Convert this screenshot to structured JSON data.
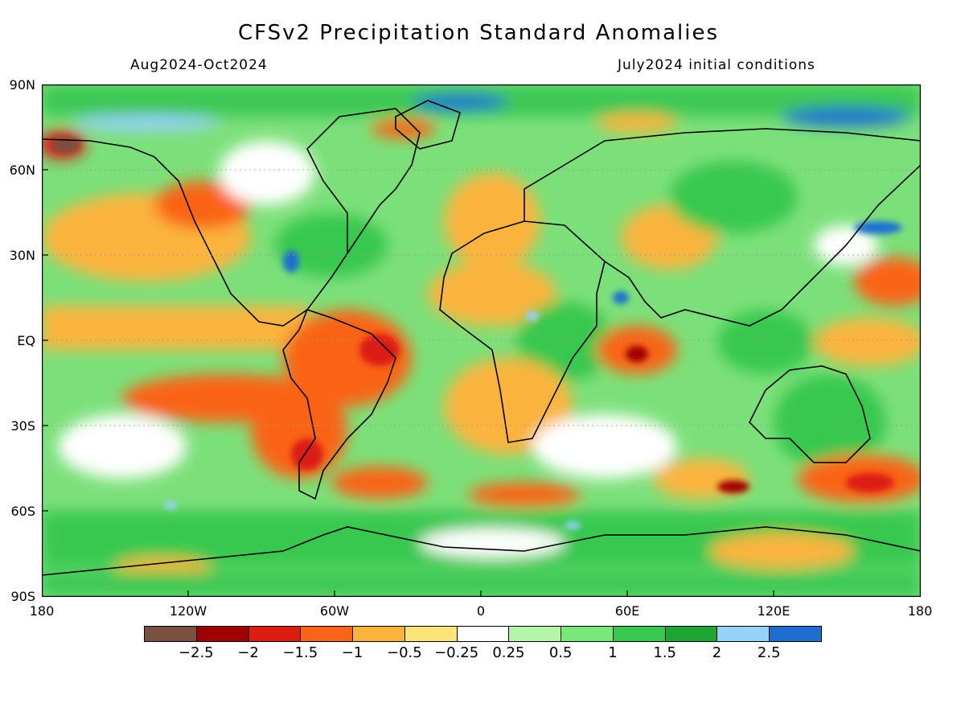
{
  "header": {
    "title": "CFSv2 Precipitation Standard Anomalies",
    "period": "Aug2024-Oct2024",
    "init": "July2024 initial conditions"
  },
  "axes": {
    "lat_labels": [
      "90N",
      "60N",
      "30N",
      "EQ",
      "30S",
      "60S",
      "90S"
    ],
    "lon_labels": [
      "180",
      "120W",
      "60W",
      "0",
      "60E",
      "120E",
      "180"
    ]
  },
  "colorbar": {
    "colors": [
      "#7a5040",
      "#a00000",
      "#dc1e12",
      "#fa6418",
      "#fab43c",
      "#fde47a",
      "#ffffff",
      "#b4f5aa",
      "#78e878",
      "#38c850",
      "#1ea532",
      "#96d2fa",
      "#1e6ed2"
    ],
    "labels": [
      "-2.5",
      "-2",
      "-1.5",
      "-1",
      "-0.5",
      "-0.25",
      "0.25",
      "0.5",
      "1",
      "1.5",
      "2",
      "2.5"
    ]
  }
}
